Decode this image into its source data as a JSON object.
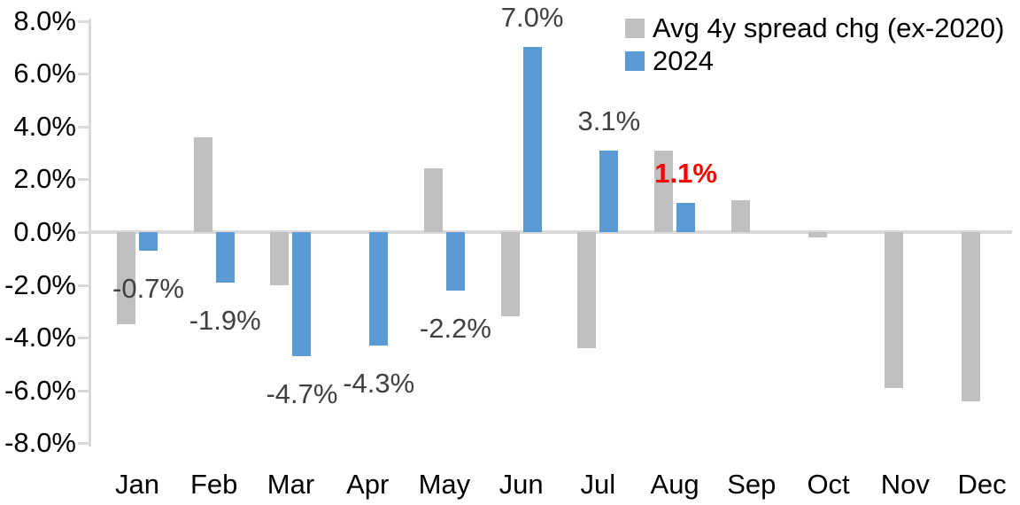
{
  "chart_data": {
    "type": "bar",
    "title": "",
    "xlabel": "",
    "ylabel": "",
    "grid": false,
    "legend_position": "top-right",
    "categories": [
      "Jan",
      "Feb",
      "Mar",
      "Apr",
      "May",
      "Jun",
      "Jul",
      "Aug",
      "Sep",
      "Oct",
      "Nov",
      "Dec"
    ],
    "series": [
      {
        "name": "Avg 4y spread chg (ex-2020)",
        "color": "#BFBFBF",
        "values": [
          -3.5,
          3.6,
          -2.0,
          0.0,
          2.4,
          -3.2,
          -4.4,
          3.1,
          1.2,
          -0.2,
          -5.9,
          -6.4
        ]
      },
      {
        "name": "2024",
        "color": "#5B9BD5",
        "values": [
          -0.7,
          -1.9,
          -4.7,
          -4.3,
          -2.2,
          7.0,
          3.1,
          1.1,
          null,
          null,
          null,
          null
        ],
        "data_labels": [
          "-0.7%",
          "-1.9%",
          "-4.7%",
          "-4.3%",
          "-2.2%",
          "7.0%",
          "3.1%",
          "1.1%",
          null,
          null,
          null,
          null
        ],
        "data_label_colors": [
          "#404040",
          "#404040",
          "#404040",
          "#404040",
          "#404040",
          "#404040",
          "#404040",
          "#FF0000",
          null,
          null,
          null,
          null
        ],
        "data_label_bold": [
          false,
          false,
          false,
          false,
          false,
          false,
          false,
          true,
          null,
          null,
          null,
          null
        ]
      }
    ],
    "ylim": [
      -8,
      8
    ],
    "y_ticks": [
      {
        "value": 8,
        "label": "8.0%"
      },
      {
        "value": 6,
        "label": "6.0%"
      },
      {
        "value": 4,
        "label": "4.0%"
      },
      {
        "value": 2,
        "label": "2.0%"
      },
      {
        "value": 0,
        "label": "0.0%"
      },
      {
        "value": -2,
        "label": "-2.0%"
      },
      {
        "value": -4,
        "label": "-4.0%"
      },
      {
        "value": -6,
        "label": "-6.0%"
      },
      {
        "value": -8,
        "label": "-8.0%"
      }
    ],
    "colors": {
      "axis_line": "#D9D9D9",
      "tick_label": "#000000",
      "data_label": "#404040",
      "highlight_label": "#FF0000",
      "gray_series": "#BFBFBF",
      "blue_series": "#5B9BD5"
    }
  }
}
